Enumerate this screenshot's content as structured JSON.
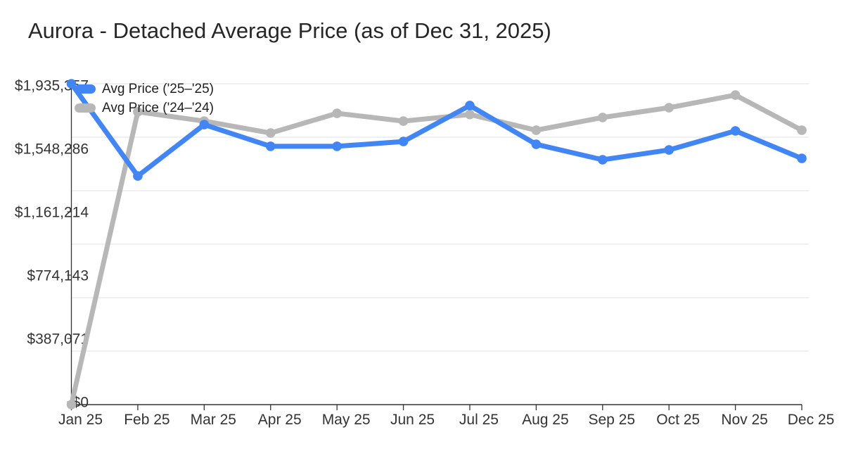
{
  "title": "Aurora - Detached Average Price (as of Dec 31, 2025)",
  "chart_data": {
    "type": "line",
    "title": "Aurora - Detached Average Price (as of Dec 31, 2025)",
    "categories": [
      "Jan 25",
      "Feb 25",
      "Mar 25",
      "Apr 25",
      "May 25",
      "Jun 25",
      "Jul 25",
      "Aug 25",
      "Sep 25",
      "Oct 25",
      "Nov 25",
      "Dec 25"
    ],
    "series": [
      {
        "name": "Avg Price ('25–'25)",
        "color": "#4285f4",
        "values": [
          1935357,
          1379000,
          1689000,
          1558000,
          1558000,
          1587000,
          1804000,
          1570000,
          1477000,
          1536000,
          1651000,
          1485000
        ]
      },
      {
        "name": "Avg Price ('24–'24)",
        "color": "#b7b7b7",
        "values": [
          0,
          1766000,
          1710000,
          1638000,
          1757000,
          1710000,
          1750000,
          1655000,
          1732000,
          1791000,
          1867000,
          1655000
        ]
      }
    ],
    "y_ticks": [
      1935357,
      1548286,
      1161214,
      774143,
      387071,
      0
    ],
    "y_tick_labels": [
      "$1,935,357",
      "$1,548,286",
      "$1,161,214",
      "$774,143",
      "$387,071",
      "$0"
    ],
    "ylim": [
      0,
      1935357
    ],
    "xlabel": "",
    "ylabel": "",
    "grid": "horizontal",
    "legend_position": "top-left-inside"
  },
  "colors": {
    "series_2025": "#4285f4",
    "series_2024": "#b7b7b7",
    "gridline": "#e7e7e7",
    "axis": "#333333",
    "tick_label": "#333333",
    "title_text": "#262626"
  }
}
